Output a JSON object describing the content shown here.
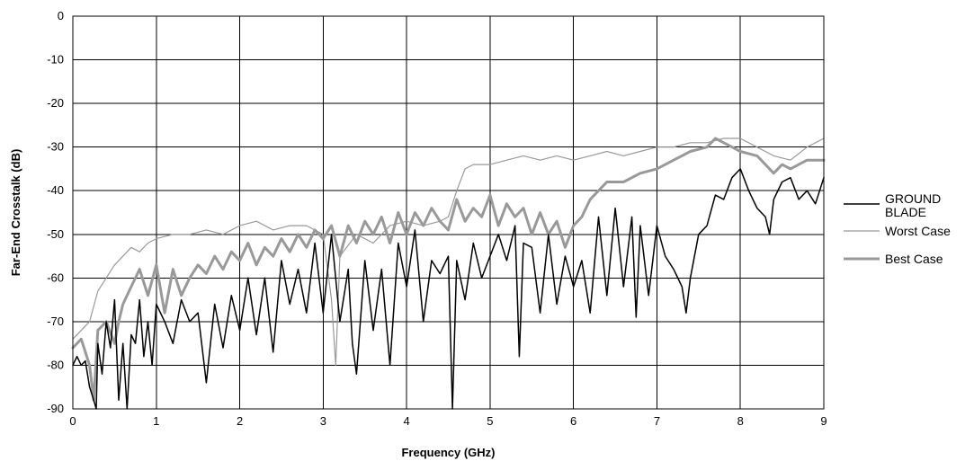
{
  "chart_data": {
    "type": "line",
    "title": "",
    "xlabel": "Frequency (GHz)",
    "ylabel": "Far-End Crosstalk (dB)",
    "xlim": [
      0,
      9
    ],
    "ylim": [
      -90,
      0
    ],
    "xticks": [
      0,
      1,
      2,
      3,
      4,
      5,
      6,
      7,
      8,
      9
    ],
    "yticks": [
      0,
      -10,
      -20,
      -30,
      -40,
      -50,
      -60,
      -70,
      -80,
      -90
    ],
    "grid": true,
    "legend_position": "right",
    "series": [
      {
        "name": "GROUND BLADE",
        "color": "#000000",
        "x": [
          0,
          0.05,
          0.1,
          0.15,
          0.2,
          0.25,
          0.28,
          0.3,
          0.35,
          0.4,
          0.45,
          0.5,
          0.55,
          0.6,
          0.65,
          0.7,
          0.75,
          0.8,
          0.85,
          0.9,
          0.95,
          1.0,
          1.1,
          1.2,
          1.3,
          1.4,
          1.5,
          1.6,
          1.7,
          1.8,
          1.9,
          2.0,
          2.1,
          2.2,
          2.3,
          2.4,
          2.5,
          2.6,
          2.7,
          2.8,
          2.9,
          3.0,
          3.1,
          3.2,
          3.3,
          3.35,
          3.4,
          3.5,
          3.6,
          3.7,
          3.8,
          3.9,
          4.0,
          4.1,
          4.2,
          4.3,
          4.4,
          4.5,
          4.55,
          4.6,
          4.7,
          4.8,
          4.9,
          5.0,
          5.1,
          5.2,
          5.3,
          5.35,
          5.4,
          5.5,
          5.6,
          5.7,
          5.8,
          5.9,
          6.0,
          6.1,
          6.2,
          6.3,
          6.4,
          6.5,
          6.6,
          6.7,
          6.75,
          6.8,
          6.9,
          7.0,
          7.1,
          7.2,
          7.3,
          7.35,
          7.4,
          7.5,
          7.6,
          7.7,
          7.8,
          7.9,
          8.0,
          8.1,
          8.2,
          8.3,
          8.35,
          8.4,
          8.5,
          8.6,
          8.7,
          8.8,
          8.9,
          9.0
        ],
        "values": [
          -80,
          -78,
          -80,
          -79,
          -85,
          -88,
          -90,
          -75,
          -82,
          -70,
          -76,
          -65,
          -88,
          -75,
          -90,
          -73,
          -75,
          -65,
          -78,
          -70,
          -80,
          -66,
          -70,
          -75,
          -65,
          -70,
          -68,
          -84,
          -66,
          -76,
          -64,
          -72,
          -60,
          -73,
          -60,
          -77,
          -56,
          -66,
          -58,
          -68,
          -52,
          -68,
          -50,
          -70,
          -58,
          -75,
          -82,
          -56,
          -72,
          -58,
          -80,
          -52,
          -62,
          -49,
          -70,
          -56,
          -59,
          -55,
          -90,
          -56,
          -65,
          -52,
          -60,
          -55,
          -50,
          -56,
          -48,
          -78,
          -52,
          -53,
          -68,
          -50,
          -66,
          -55,
          -62,
          -56,
          -68,
          -46,
          -64,
          -44,
          -62,
          -46,
          -69,
          -48,
          -64,
          -48,
          -55,
          -58,
          -62,
          -68,
          -60,
          -50,
          -48,
          -41,
          -42,
          -37,
          -35,
          -40,
          -44,
          -46,
          -50,
          -42,
          -38,
          -37,
          -42,
          -40,
          -43,
          -37
        ]
      },
      {
        "name": "Worst Case",
        "color": "#999999",
        "x": [
          0,
          0.1,
          0.2,
          0.3,
          0.4,
          0.5,
          0.6,
          0.7,
          0.8,
          0.9,
          1.0,
          1.2,
          1.4,
          1.6,
          1.8,
          2.0,
          2.2,
          2.4,
          2.6,
          2.8,
          3.0,
          3.1,
          3.15,
          3.2,
          3.4,
          3.6,
          3.8,
          4.0,
          4.2,
          4.4,
          4.5,
          4.6,
          4.7,
          4.8,
          5.0,
          5.2,
          5.4,
          5.6,
          5.8,
          6.0,
          6.2,
          6.4,
          6.6,
          6.8,
          7.0,
          7.2,
          7.4,
          7.6,
          7.8,
          8.0,
          8.2,
          8.4,
          8.6,
          8.8,
          9.0
        ],
        "values": [
          -74,
          -72,
          -70,
          -63,
          -60,
          -57,
          -55,
          -53,
          -54,
          -52,
          -51,
          -50,
          -50,
          -49,
          -50,
          -48,
          -47,
          -49,
          -48,
          -48,
          -50,
          -65,
          -80,
          -55,
          -50,
          -52,
          -48,
          -47,
          -48,
          -47,
          -46,
          -40,
          -35,
          -34,
          -34,
          -33,
          -32,
          -33,
          -32,
          -33,
          -32,
          -31,
          -32,
          -31,
          -30,
          -30,
          -29,
          -29,
          -28,
          -28,
          -30,
          -32,
          -33,
          -30,
          -28
        ]
      },
      {
        "name": "Best Case",
        "color": "#999999",
        "x": [
          0,
          0.1,
          0.2,
          0.25,
          0.3,
          0.4,
          0.5,
          0.55,
          0.6,
          0.7,
          0.8,
          0.9,
          1.0,
          1.1,
          1.2,
          1.3,
          1.4,
          1.5,
          1.6,
          1.7,
          1.8,
          1.9,
          2.0,
          2.1,
          2.2,
          2.3,
          2.4,
          2.5,
          2.6,
          2.7,
          2.8,
          2.9,
          3.0,
          3.1,
          3.2,
          3.3,
          3.4,
          3.5,
          3.6,
          3.7,
          3.8,
          3.9,
          4.0,
          4.1,
          4.2,
          4.3,
          4.4,
          4.5,
          4.6,
          4.7,
          4.8,
          4.9,
          5.0,
          5.1,
          5.2,
          5.3,
          5.4,
          5.5,
          5.6,
          5.7,
          5.8,
          5.9,
          6.0,
          6.1,
          6.2,
          6.3,
          6.4,
          6.6,
          6.8,
          7.0,
          7.2,
          7.4,
          7.6,
          7.7,
          7.8,
          8.0,
          8.2,
          8.4,
          8.5,
          8.6,
          8.8,
          9.0
        ],
        "values": [
          -76,
          -74,
          -80,
          -88,
          -72,
          -70,
          -75,
          -70,
          -66,
          -62,
          -58,
          -64,
          -57,
          -68,
          -58,
          -64,
          -60,
          -57,
          -59,
          -55,
          -58,
          -54,
          -56,
          -52,
          -57,
          -53,
          -55,
          -51,
          -54,
          -50,
          -53,
          -49,
          -51,
          -48,
          -55,
          -48,
          -52,
          -47,
          -50,
          -46,
          -52,
          -45,
          -50,
          -45,
          -48,
          -44,
          -47,
          -49,
          -42,
          -47,
          -44,
          -46,
          -41,
          -48,
          -43,
          -46,
          -44,
          -50,
          -45,
          -50,
          -47,
          -53,
          -48,
          -46,
          -42,
          -40,
          -38,
          -38,
          -36,
          -35,
          -33,
          -31,
          -30,
          -28,
          -29,
          -31,
          -32,
          -36,
          -34,
          -35,
          -33,
          -33
        ]
      }
    ]
  }
}
